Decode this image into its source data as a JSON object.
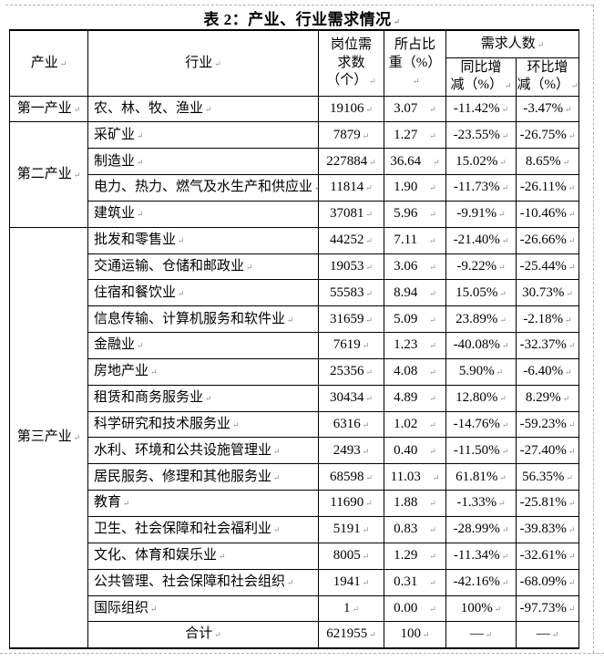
{
  "page": {
    "title": "表 2：产业、行业需求情况"
  },
  "table": {
    "headers": {
      "industry": "产业",
      "sector": "行业",
      "positions": "岗位需\n求数\n（个）",
      "share": "所占比\n重（%）",
      "demand_group": "需求人数",
      "yoy": "同比增\n减（%）",
      "mom": "环比增\n减（%）"
    },
    "sections": [
      {
        "industry": "第一产业",
        "rows": [
          {
            "sector": "农、林、牧、渔业",
            "positions": "19106",
            "share": "3.07",
            "yoy": "-11.42%",
            "mom": "-3.47%"
          }
        ]
      },
      {
        "industry": "第二产业",
        "rows": [
          {
            "sector": "采矿业",
            "positions": "7879",
            "share": "1.27",
            "yoy": "-23.55%",
            "mom": "-26.75%"
          },
          {
            "sector": "制造业",
            "positions": "227884",
            "share": "36.64",
            "yoy": "15.02%",
            "mom": "8.65%"
          },
          {
            "sector": "电力、热力、燃气及水生产和供应业",
            "positions": "11814",
            "share": "1.90",
            "yoy": "-11.73%",
            "mom": "-26.11%"
          },
          {
            "sector": "建筑业",
            "positions": "37081",
            "share": "5.96",
            "yoy": "-9.91%",
            "mom": "-10.46%"
          }
        ]
      },
      {
        "industry": "第三产业",
        "merge_total_row": true,
        "rows": [
          {
            "sector": "批发和零售业",
            "positions": "44252",
            "share": "7.11",
            "yoy": "-21.40%",
            "mom": "-26.66%"
          },
          {
            "sector": "交通运输、仓储和邮政业",
            "positions": "19053",
            "share": "3.06",
            "yoy": "-9.22%",
            "mom": "-25.44%"
          },
          {
            "sector": "住宿和餐饮业",
            "positions": "55583",
            "share": "8.94",
            "yoy": "15.05%",
            "mom": "30.73%"
          },
          {
            "sector": "信息传输、计算机服务和软件业",
            "positions": "31659",
            "share": "5.09",
            "yoy": "23.89%",
            "mom": "-2.18%"
          },
          {
            "sector": "金融业",
            "positions": "7619",
            "share": "1.23",
            "yoy": "-40.08%",
            "mom": "-32.37%"
          },
          {
            "sector": "房地产业",
            "positions": "25356",
            "share": "4.08",
            "yoy": "5.90%",
            "mom": "-6.40%"
          },
          {
            "sector": "租赁和商务服务业",
            "positions": "30434",
            "share": "4.89",
            "yoy": "12.80%",
            "mom": "8.29%"
          },
          {
            "sector": "科学研究和技术服务业",
            "positions": "6316",
            "share": "1.02",
            "yoy": "-14.76%",
            "mom": "-59.23%"
          },
          {
            "sector": "水利、环境和公共设施管理业",
            "positions": "2493",
            "share": "0.40",
            "yoy": "-11.50%",
            "mom": "-27.40%"
          },
          {
            "sector": "居民服务、修理和其他服务业",
            "positions": "68598",
            "share": "11.03",
            "yoy": "61.81%",
            "mom": "56.35%"
          },
          {
            "sector": "教育",
            "positions": "11690",
            "share": "1.88",
            "yoy": "-1.33%",
            "mom": "-25.81%"
          },
          {
            "sector": "卫生、社会保障和社会福利业",
            "positions": "5191",
            "share": "0.83",
            "yoy": "-28.99%",
            "mom": "-39.83%"
          },
          {
            "sector": "文化、体育和娱乐业",
            "positions": "8005",
            "share": "1.29",
            "yoy": "-11.34%",
            "mom": "-32.61%"
          },
          {
            "sector": "公共管理、社会保障和社会组织",
            "positions": "1941",
            "share": "0.31",
            "yoy": "-42.16%",
            "mom": "-68.09%"
          },
          {
            "sector": "国际组织",
            "positions": "1",
            "share": "0.00",
            "yoy": "100%",
            "mom": "-97.73%"
          }
        ]
      }
    ],
    "total_row": {
      "label": "合计",
      "positions": "621955",
      "share": "100",
      "yoy": "—",
      "mom": "—"
    }
  }
}
